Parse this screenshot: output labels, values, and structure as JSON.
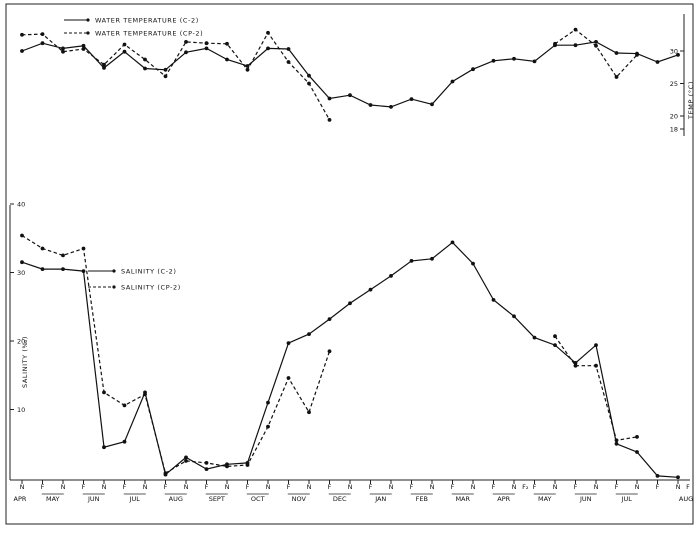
{
  "chart_data": [
    {
      "type": "line",
      "ylabel": "TEMP (°C)",
      "yticks": [
        "30",
        "25",
        "20",
        "18"
      ],
      "ylim": [
        17,
        33
      ],
      "legend": [
        "WATER TEMPERATURE (C-2)",
        "WATER TEMPERATURE (CP-2)"
      ],
      "legend_position": "top-left",
      "series": [
        {
          "name": "WATER TEMPERATURE (C-2)",
          "style": "solid",
          "x": [
            0,
            1,
            2,
            3,
            4,
            5,
            6,
            7,
            8,
            9,
            10,
            11,
            12,
            13,
            14,
            15,
            16,
            17,
            18,
            19,
            20,
            21,
            22,
            23,
            24,
            25,
            26,
            27,
            28,
            29,
            30,
            31,
            32
          ],
          "values": [
            30.0,
            31.2,
            30.4,
            30.8,
            27.4,
            29.9,
            27.3,
            27.1,
            29.8,
            30.4,
            28.7,
            27.7,
            30.4,
            30.3,
            26.2,
            22.7,
            23.2,
            21.7,
            21.4,
            22.6,
            21.8,
            25.3,
            27.2,
            28.5,
            28.8,
            28.4,
            30.9,
            30.9,
            31.4,
            29.7,
            29.6,
            28.3,
            29.4
          ]
        },
        {
          "name": "WATER TEMPERATURE (CP-2)",
          "style": "dashed",
          "x": [
            0,
            1,
            2,
            3,
            4,
            5,
            6,
            7,
            8,
            9,
            10,
            11,
            12,
            13,
            14,
            15
          ],
          "values": [
            32.5,
            32.6,
            29.9,
            30.3,
            27.9,
            31.0,
            28.7,
            26.1,
            31.4,
            31.2,
            31.1,
            27.1,
            32.8,
            28.3,
            25.0,
            19.4
          ]
        },
        {
          "name": "",
          "style": "dashed",
          "x": [
            26,
            27,
            28,
            29,
            30
          ],
          "values": [
            31.1,
            33.3,
            30.8,
            26.0,
            29.4
          ]
        }
      ]
    },
    {
      "type": "line",
      "ylabel": "SALINITY (‰)",
      "yticks": [
        "40",
        "30",
        "20",
        "10"
      ],
      "ylim": [
        0,
        40
      ],
      "legend": [
        "SALINITY (C-2)",
        "SALINITY (CP-2)"
      ],
      "legend_position": "top-left",
      "series": [
        {
          "name": "SALINITY (C-2)",
          "style": "solid",
          "x": [
            0,
            1,
            2,
            3,
            4,
            5,
            6,
            7,
            8,
            9,
            10,
            11,
            12,
            13,
            14,
            15,
            16,
            17,
            18,
            19,
            20,
            21,
            22,
            23,
            24,
            25,
            26,
            27,
            28,
            29,
            30,
            31,
            32
          ],
          "values": [
            31.5,
            30.5,
            30.5,
            30.2,
            4.5,
            5.3,
            12.5,
            0.5,
            3.0,
            1.3,
            2.0,
            2.2,
            11.0,
            19.7,
            21.0,
            23.2,
            25.5,
            27.5,
            29.5,
            31.7,
            32.0,
            34.4,
            31.3,
            26.0,
            23.6,
            20.5,
            19.4,
            16.8,
            19.4,
            5.0,
            3.8,
            0.3,
            0.1
          ]
        },
        {
          "name": "SALINITY (CP-2)",
          "style": "dashed",
          "x": [
            0,
            1,
            2,
            3,
            4,
            5,
            6,
            7,
            8,
            9,
            10,
            11,
            12,
            13,
            14,
            15
          ],
          "values": [
            35.4,
            33.5,
            32.5,
            33.5,
            12.5,
            10.6,
            12.2,
            0.7,
            2.5,
            2.2,
            1.7,
            1.9,
            7.5,
            14.6,
            9.6,
            18.5
          ]
        },
        {
          "name": "",
          "style": "dashed",
          "x": [
            26,
            27,
            28,
            29,
            30
          ],
          "values": [
            20.7,
            16.4,
            16.4,
            5.5,
            6.0
          ]
        }
      ]
    }
  ],
  "x_axis": {
    "halfmonth_ticks": [
      "N",
      "F",
      "N",
      "F",
      "N",
      "F",
      "N",
      "F",
      "N",
      "F",
      "N",
      "F",
      "N",
      "F",
      "N",
      "F",
      "N",
      "F",
      "N",
      "F",
      "N",
      "F",
      "N",
      "F",
      "N",
      "F",
      "N",
      "F",
      "N",
      "F",
      "N",
      "F",
      "N"
    ],
    "extra_ticks": [
      "F₂",
      "F"
    ],
    "months": [
      "APR",
      "MAY",
      "JUN",
      "JUL",
      "AUG",
      "SEPT",
      "OCT",
      "NOV",
      "DEC",
      "JAN",
      "FEB",
      "MAR",
      "APR",
      "MAY",
      "JUN",
      "JUL",
      "AUG"
    ]
  }
}
